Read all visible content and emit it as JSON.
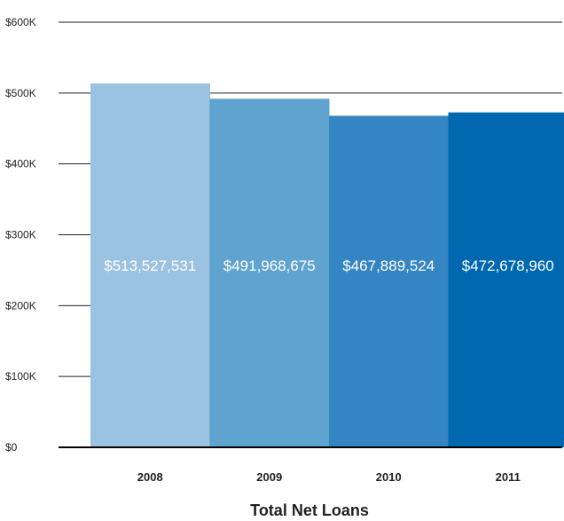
{
  "chart_data": {
    "type": "bar",
    "title": "Total Net Loans",
    "xlabel": "",
    "ylabel": "",
    "categories": [
      "2008",
      "2009",
      "2010",
      "2011"
    ],
    "values": [
      513527531,
      491968675,
      467889524,
      472678960
    ],
    "data_labels": [
      "$513,527,531",
      "$491,968,675",
      "$467,889,524",
      "$472,678,960"
    ],
    "bar_colors": [
      "#9bc2e0",
      "#5fa3d0",
      "#3485c3",
      "#0067b1"
    ],
    "ylim": [
      0,
      600000
    ],
    "yticks": [
      0,
      100000,
      200000,
      300000,
      400000,
      500000,
      600000
    ],
    "ytick_labels": [
      "$0",
      "$100K",
      "$200K",
      "$300K",
      "$400K",
      "$500K",
      "$600K"
    ],
    "grid": true,
    "legend": "none"
  }
}
